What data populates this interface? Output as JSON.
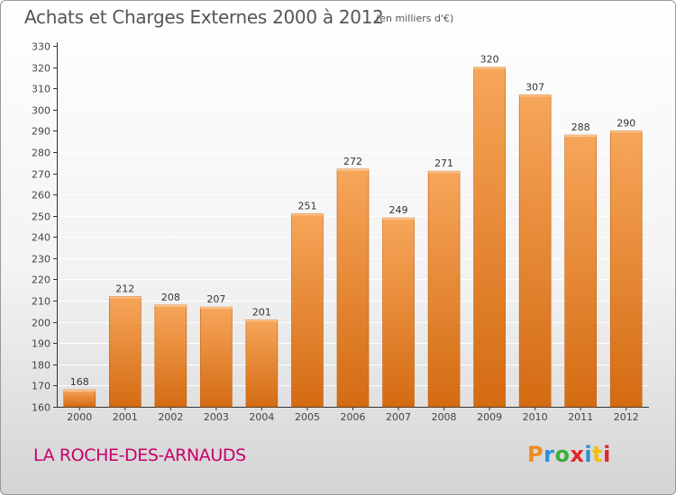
{
  "header": {
    "title": "Achats et Charges Externes 2000 à 2012",
    "subtitle": "(en milliers d'€)"
  },
  "footer": {
    "place": "LA ROCHE-DES-ARNAUDS",
    "logo": {
      "text": "Proxiti",
      "letter_colors": [
        "#f08c1e",
        "#2a8fd8",
        "#3cae3c",
        "#e0262b",
        "#2a8fd8",
        "#f5c000",
        "#e0262b"
      ]
    }
  },
  "colors": {
    "bar_top": "#f7a65a",
    "bar_bottom": "#d46b12",
    "bar_edge": "#c0600f",
    "grid": "#ffffff",
    "axis": "#333333"
  },
  "chart_data": {
    "type": "bar",
    "title": "Achats et Charges Externes 2000 à 2012",
    "subtitle": "(en milliers d'€)",
    "xlabel": "",
    "ylabel": "",
    "categories": [
      "2000",
      "2001",
      "2002",
      "2003",
      "2004",
      "2005",
      "2006",
      "2007",
      "2008",
      "2009",
      "2010",
      "2011",
      "2012"
    ],
    "values": [
      168,
      212,
      208,
      207,
      201,
      251,
      272,
      249,
      271,
      320,
      307,
      288,
      290
    ],
    "ylim": [
      160,
      330
    ],
    "ytick_step": 10,
    "yticks": [
      "160",
      "170",
      "180",
      "190",
      "200",
      "210",
      "220",
      "230",
      "240",
      "250",
      "260",
      "270",
      "280",
      "290",
      "300",
      "310",
      "320",
      "330"
    ],
    "grid": true,
    "data_labels": true,
    "legend": "none"
  }
}
